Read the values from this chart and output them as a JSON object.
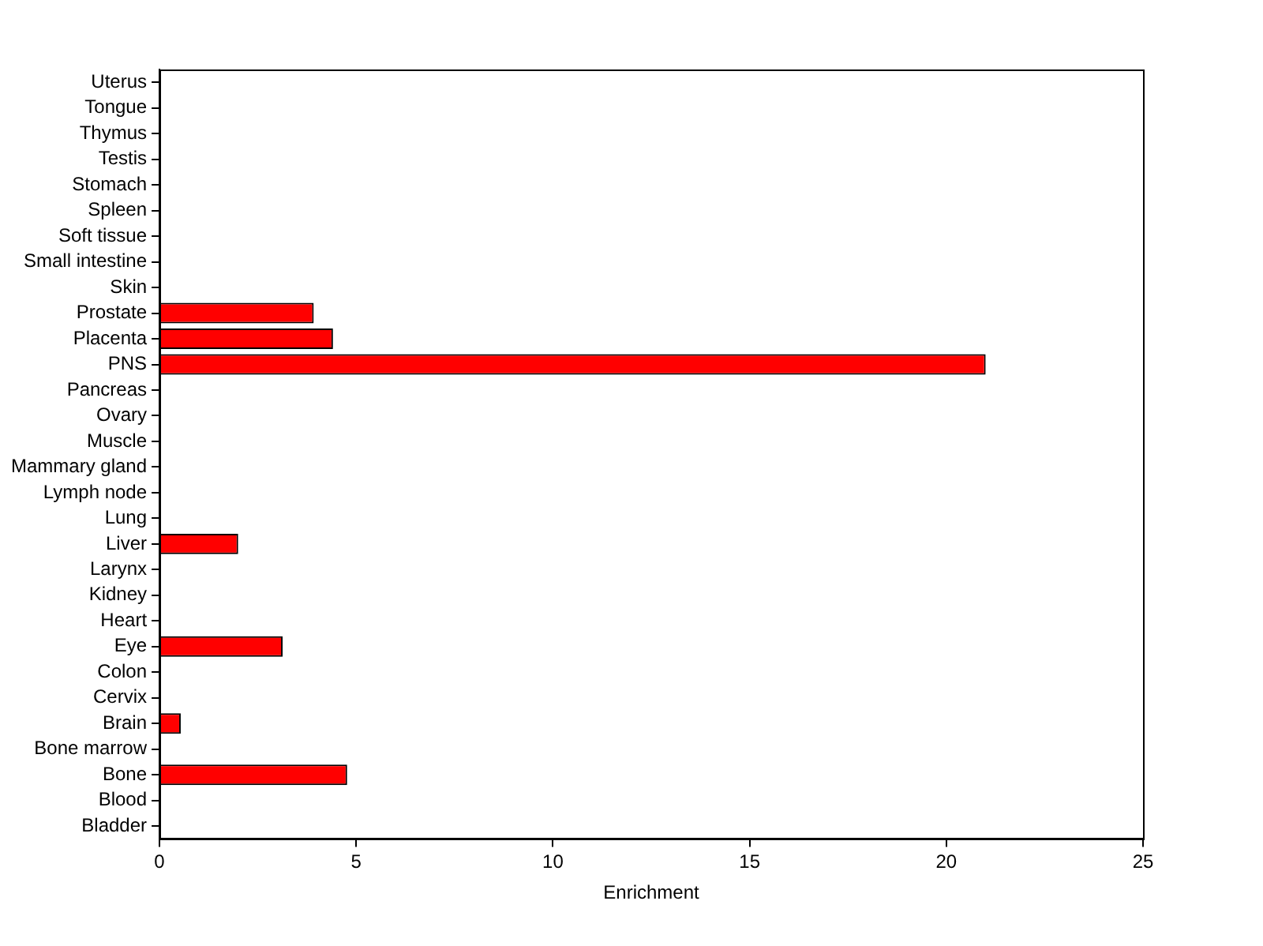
{
  "chart_data": {
    "type": "bar",
    "orientation": "horizontal",
    "xlabel": "Enrichment",
    "categories": [
      "Uterus",
      "Tongue",
      "Thymus",
      "Testis",
      "Stomach",
      "Spleen",
      "Soft tissue",
      "Small intestine",
      "Skin",
      "Prostate",
      "Placenta",
      "PNS",
      "Pancreas",
      "Ovary",
      "Muscle",
      "Mammary gland",
      "Lymph node",
      "Lung",
      "Liver",
      "Larynx",
      "Kidney",
      "Heart",
      "Eye",
      "Colon",
      "Cervix",
      "Brain",
      "Bone marrow",
      "Bone",
      "Blood",
      "Bladder"
    ],
    "values": [
      0,
      0,
      0,
      0,
      0,
      0,
      0,
      0,
      0,
      3.92,
      4.41,
      21.0,
      0,
      0,
      0,
      0,
      0,
      0,
      2.0,
      0,
      0,
      0,
      3.13,
      0,
      0,
      0.54,
      0,
      4.77,
      0,
      0
    ],
    "color": "#ff0000",
    "xlim": [
      0,
      25
    ],
    "xticks": [
      0,
      5,
      10,
      15,
      20,
      25
    ],
    "grid": false,
    "legend": false
  }
}
